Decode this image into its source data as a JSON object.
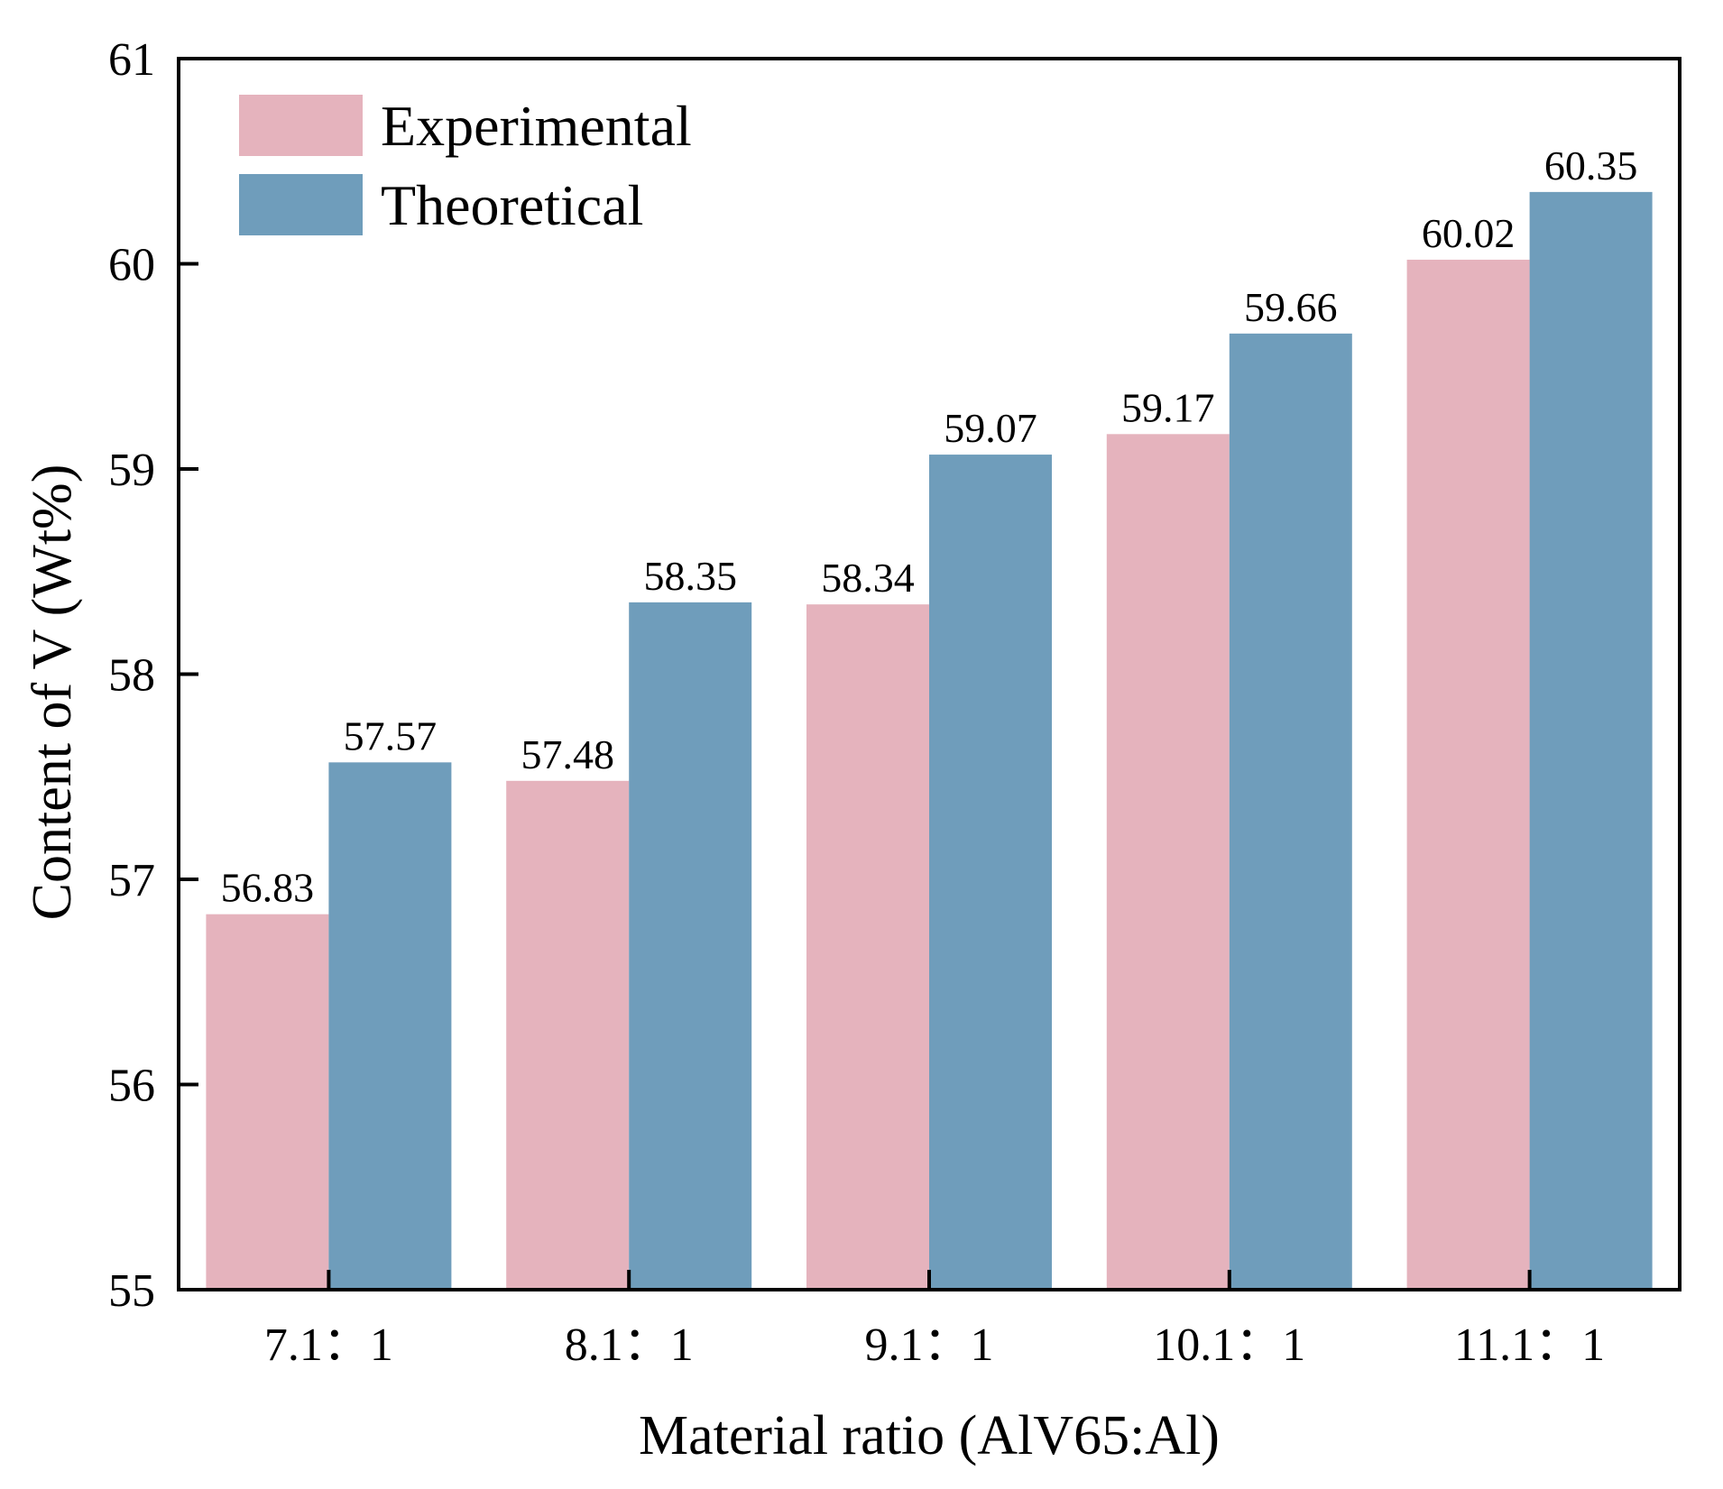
{
  "chart_data": {
    "type": "bar",
    "title": "",
    "xlabel": "Material ratio (AlV65:Al)",
    "ylabel": "Content of V (Wt%)",
    "categories": [
      "7.1：1",
      "8.1：1",
      "9.1：1",
      "10.1：1",
      "11.1：1"
    ],
    "ylim": [
      55,
      61
    ],
    "yticks": [
      55,
      56,
      57,
      58,
      59,
      60,
      61
    ],
    "grid": false,
    "legend_position": "top-left",
    "series": [
      {
        "name": "Experimental",
        "color": "#e5b3bd",
        "values": [
          56.83,
          57.48,
          58.34,
          59.17,
          60.02
        ]
      },
      {
        "name": "Theoretical",
        "color": "#6f9dbb",
        "values": [
          57.57,
          58.35,
          59.07,
          59.66,
          60.35
        ]
      }
    ]
  }
}
